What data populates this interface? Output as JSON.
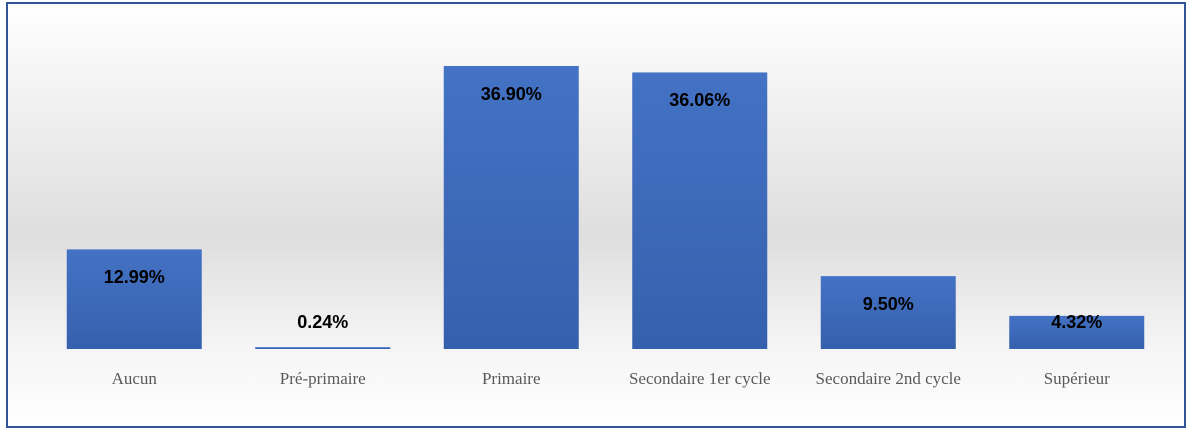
{
  "chart_data": {
    "type": "bar",
    "categories": [
      "Aucun",
      "Pré-primaire",
      "Primaire",
      "Secondaire 1er cycle",
      "Secondaire 2nd cycle",
      "Supérieur"
    ],
    "values": [
      12.99,
      0.24,
      36.9,
      36.06,
      9.5,
      4.32
    ],
    "value_labels": [
      "12.99%",
      "0.24%",
      "36.90%",
      "36.06%",
      "9.50%",
      "4.32%"
    ],
    "color": "#4472c4"
  }
}
